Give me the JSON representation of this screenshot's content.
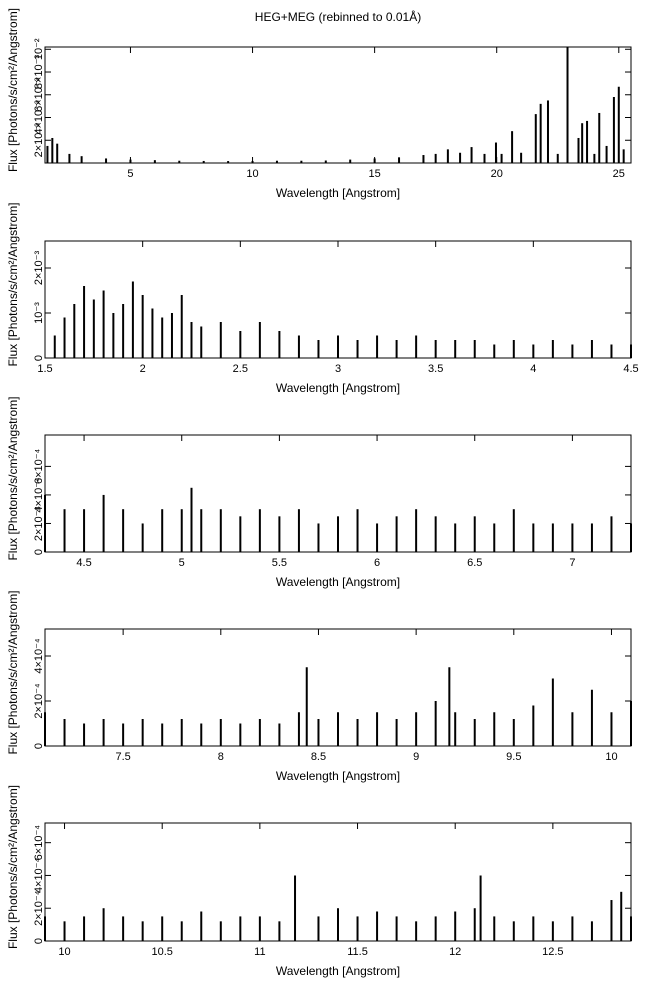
{
  "figure_title": "HEG+MEG (rebinned to 0.01Å)",
  "chart_data": [
    {
      "type": "line",
      "title": "HEG+MEG (rebinned to 0.01Å)",
      "xlabel": "Wavelength [Angstrom]",
      "ylabel": "Flux [Photons/s/cm²/Angstrom]",
      "xlim": [
        1.5,
        25.5
      ],
      "ylim": [
        0,
        0.0102
      ],
      "xticks": [
        5,
        10,
        15,
        20,
        25
      ],
      "xtick_labels": [
        "5",
        "10",
        "15",
        "20",
        "25"
      ],
      "yticks": [
        0.002,
        0.004,
        0.006,
        0.008,
        0.01
      ],
      "ytick_labels": [
        "2×10⁻³",
        "4×10⁻³",
        "6×10⁻³",
        "8×10⁻³",
        "10⁻²"
      ],
      "series": [
        {
          "values": [
            [
              1.6,
              0.0015
            ],
            [
              1.8,
              0.0022
            ],
            [
              2.0,
              0.0017
            ],
            [
              2.5,
              0.0008
            ],
            [
              3,
              0.0006
            ],
            [
              4,
              0.0004
            ],
            [
              5,
              0.0003
            ],
            [
              6,
              0.00025
            ],
            [
              7,
              0.0002
            ],
            [
              8,
              0.00018
            ],
            [
              9,
              0.00017
            ],
            [
              10,
              0.00018
            ],
            [
              11,
              0.0002
            ],
            [
              12,
              0.0002
            ],
            [
              13,
              0.00022
            ],
            [
              14,
              0.0003
            ],
            [
              15,
              0.0004
            ],
            [
              16,
              0.0005
            ],
            [
              17,
              0.0007
            ],
            [
              17.5,
              0.0008
            ],
            [
              18,
              0.0012
            ],
            [
              18.5,
              0.0009
            ],
            [
              18.97,
              0.0014
            ],
            [
              19.5,
              0.0008
            ],
            [
              19.97,
              0.0018
            ],
            [
              20.2,
              0.0008
            ],
            [
              20.63,
              0.0028
            ],
            [
              21.0,
              0.0009
            ],
            [
              21.6,
              0.0043
            ],
            [
              21.8,
              0.0052
            ],
            [
              22.1,
              0.0055
            ],
            [
              22.5,
              0.0008
            ],
            [
              22.9,
              0.0102
            ],
            [
              23.35,
              0.0022
            ],
            [
              23.5,
              0.0035
            ],
            [
              23.7,
              0.0037
            ],
            [
              24.0,
              0.0008
            ],
            [
              24.2,
              0.0044
            ],
            [
              24.5,
              0.0015
            ],
            [
              24.8,
              0.0058
            ],
            [
              25.0,
              0.0067
            ],
            [
              25.2,
              0.0012
            ]
          ]
        }
      ]
    },
    {
      "type": "line",
      "xlabel": "Wavelength [Angstrom]",
      "ylabel": "Flux [Photons/s/cm²/Angstrom]",
      "xlim": [
        1.5,
        4.5
      ],
      "ylim": [
        0,
        0.0026
      ],
      "xticks": [
        1.5,
        2,
        2.5,
        3,
        3.5,
        4,
        4.5
      ],
      "xtick_labels": [
        "1.5",
        "2",
        "2.5",
        "3",
        "3.5",
        "4",
        "4.5"
      ],
      "yticks": [
        0,
        0.001,
        0.002
      ],
      "ytick_labels": [
        "0",
        "10⁻³",
        "2×10⁻³"
      ],
      "series": [
        {
          "values": [
            [
              1.55,
              0.0005
            ],
            [
              1.6,
              0.0009
            ],
            [
              1.65,
              0.0012
            ],
            [
              1.7,
              0.0016
            ],
            [
              1.75,
              0.0013
            ],
            [
              1.8,
              0.0015
            ],
            [
              1.85,
              0.001
            ],
            [
              1.9,
              0.0012
            ],
            [
              1.95,
              0.0017
            ],
            [
              2.0,
              0.0014
            ],
            [
              2.05,
              0.0011
            ],
            [
              2.1,
              0.0009
            ],
            [
              2.15,
              0.001
            ],
            [
              2.2,
              0.0014
            ],
            [
              2.25,
              0.0008
            ],
            [
              2.3,
              0.0007
            ],
            [
              2.4,
              0.0008
            ],
            [
              2.5,
              0.0006
            ],
            [
              2.6,
              0.0008
            ],
            [
              2.7,
              0.0006
            ],
            [
              2.8,
              0.0005
            ],
            [
              2.9,
              0.0004
            ],
            [
              3.0,
              0.0005
            ],
            [
              3.1,
              0.0004
            ],
            [
              3.2,
              0.0005
            ],
            [
              3.3,
              0.0004
            ],
            [
              3.4,
              0.0005
            ],
            [
              3.5,
              0.0004
            ],
            [
              3.6,
              0.0004
            ],
            [
              3.7,
              0.0004
            ],
            [
              3.8,
              0.0003
            ],
            [
              3.9,
              0.0004
            ],
            [
              4.0,
              0.0003
            ],
            [
              4.1,
              0.0004
            ],
            [
              4.2,
              0.0003
            ],
            [
              4.3,
              0.0004
            ],
            [
              4.4,
              0.0003
            ],
            [
              4.5,
              0.0003
            ]
          ]
        }
      ]
    },
    {
      "type": "line",
      "xlabel": "Wavelength [Angstrom]",
      "ylabel": "Flux [Photons/s/cm²/Angstrom]",
      "xlim": [
        4.3,
        7.3
      ],
      "ylim": [
        0,
        0.00082
      ],
      "xticks": [
        4.5,
        5,
        5.5,
        6,
        6.5,
        7
      ],
      "xtick_labels": [
        "4.5",
        "5",
        "5.5",
        "6",
        "6.5",
        "7"
      ],
      "yticks": [
        0,
        0.0002,
        0.0004,
        0.0006
      ],
      "ytick_labels": [
        "0",
        "2×10⁻⁴",
        "4×10⁻⁴",
        "6×10⁻⁴"
      ],
      "series": [
        {
          "values": [
            [
              4.3,
              0.0004
            ],
            [
              4.4,
              0.0003
            ],
            [
              4.5,
              0.0003
            ],
            [
              4.6,
              0.0004
            ],
            [
              4.7,
              0.0003
            ],
            [
              4.8,
              0.0002
            ],
            [
              4.9,
              0.0003
            ],
            [
              5.0,
              0.0003
            ],
            [
              5.05,
              0.00045
            ],
            [
              5.1,
              0.0003
            ],
            [
              5.2,
              0.0003
            ],
            [
              5.3,
              0.00025
            ],
            [
              5.4,
              0.0003
            ],
            [
              5.5,
              0.00025
            ],
            [
              5.6,
              0.0003
            ],
            [
              5.7,
              0.0002
            ],
            [
              5.8,
              0.00025
            ],
            [
              5.9,
              0.0003
            ],
            [
              6.0,
              0.0002
            ],
            [
              6.1,
              0.00025
            ],
            [
              6.2,
              0.0003
            ],
            [
              6.3,
              0.00025
            ],
            [
              6.4,
              0.0002
            ],
            [
              6.5,
              0.00025
            ],
            [
              6.6,
              0.0002
            ],
            [
              6.7,
              0.0003
            ],
            [
              6.8,
              0.0002
            ],
            [
              6.9,
              0.0002
            ],
            [
              7.0,
              0.0002
            ],
            [
              7.1,
              0.0002
            ],
            [
              7.2,
              0.00025
            ],
            [
              7.3,
              0.0002
            ]
          ]
        }
      ]
    },
    {
      "type": "line",
      "xlabel": "Wavelength [Angstrom]",
      "ylabel": "Flux [Photons/s/cm²/Angstrom]",
      "xlim": [
        7.1,
        10.1
      ],
      "ylim": [
        0,
        0.00052
      ],
      "xticks": [
        7.5,
        8,
        8.5,
        9,
        9.5,
        10
      ],
      "xtick_labels": [
        "7.5",
        "8",
        "8.5",
        "9",
        "9.5",
        "10"
      ],
      "yticks": [
        0,
        0.0002,
        0.0004
      ],
      "ytick_labels": [
        "0",
        "2×10⁻⁴",
        "4×10⁻⁴"
      ],
      "series": [
        {
          "values": [
            [
              7.1,
              0.00015
            ],
            [
              7.2,
              0.00012
            ],
            [
              7.3,
              0.0001
            ],
            [
              7.4,
              0.00012
            ],
            [
              7.5,
              0.0001
            ],
            [
              7.6,
              0.00012
            ],
            [
              7.7,
              0.0001
            ],
            [
              7.8,
              0.00012
            ],
            [
              7.9,
              0.0001
            ],
            [
              8.0,
              0.00012
            ],
            [
              8.1,
              0.0001
            ],
            [
              8.2,
              0.00012
            ],
            [
              8.3,
              0.0001
            ],
            [
              8.4,
              0.00015
            ],
            [
              8.44,
              0.00035
            ],
            [
              8.5,
              0.00012
            ],
            [
              8.6,
              0.00015
            ],
            [
              8.7,
              0.00012
            ],
            [
              8.8,
              0.00015
            ],
            [
              8.9,
              0.00012
            ],
            [
              9.0,
              0.00015
            ],
            [
              9.1,
              0.0002
            ],
            [
              9.17,
              0.00035
            ],
            [
              9.2,
              0.00015
            ],
            [
              9.3,
              0.00012
            ],
            [
              9.4,
              0.00015
            ],
            [
              9.5,
              0.00012
            ],
            [
              9.6,
              0.00018
            ],
            [
              9.7,
              0.0003
            ],
            [
              9.8,
              0.00015
            ],
            [
              9.9,
              0.00025
            ],
            [
              10.0,
              0.00015
            ],
            [
              10.1,
              0.0002
            ]
          ]
        }
      ]
    },
    {
      "type": "line",
      "xlabel": "Wavelength [Angstrom]",
      "ylabel": "Flux [Photons/s/cm²/Angstrom]",
      "xlim": [
        9.9,
        12.9
      ],
      "ylim": [
        0,
        0.00072
      ],
      "xticks": [
        10,
        10.5,
        11,
        11.5,
        12,
        12.5
      ],
      "xtick_labels": [
        "10",
        "10.5",
        "11",
        "11.5",
        "12",
        "12.5"
      ],
      "yticks": [
        0,
        0.0002,
        0.0004,
        0.0006
      ],
      "ytick_labels": [
        "0",
        "2×10⁻⁴",
        "4×10⁻⁴",
        "6×10⁻⁴"
      ],
      "series": [
        {
          "values": [
            [
              9.9,
              0.00015
            ],
            [
              10.0,
              0.00012
            ],
            [
              10.1,
              0.00015
            ],
            [
              10.2,
              0.0002
            ],
            [
              10.3,
              0.00015
            ],
            [
              10.4,
              0.00012
            ],
            [
              10.5,
              0.00015
            ],
            [
              10.6,
              0.00012
            ],
            [
              10.7,
              0.00018
            ],
            [
              10.8,
              0.00012
            ],
            [
              10.9,
              0.00015
            ],
            [
              11.0,
              0.00015
            ],
            [
              11.1,
              0.00012
            ],
            [
              11.18,
              0.0004
            ],
            [
              11.3,
              0.00015
            ],
            [
              11.4,
              0.0002
            ],
            [
              11.5,
              0.00015
            ],
            [
              11.6,
              0.00018
            ],
            [
              11.7,
              0.00015
            ],
            [
              11.8,
              0.00012
            ],
            [
              11.9,
              0.00015
            ],
            [
              12.0,
              0.00018
            ],
            [
              12.1,
              0.0002
            ],
            [
              12.13,
              0.0004
            ],
            [
              12.2,
              0.00015
            ],
            [
              12.3,
              0.00012
            ],
            [
              12.4,
              0.00015
            ],
            [
              12.5,
              0.00012
            ],
            [
              12.6,
              0.00015
            ],
            [
              12.7,
              0.00012
            ],
            [
              12.8,
              0.00025
            ],
            [
              12.85,
              0.0003
            ],
            [
              12.9,
              0.00015
            ]
          ]
        }
      ]
    }
  ]
}
